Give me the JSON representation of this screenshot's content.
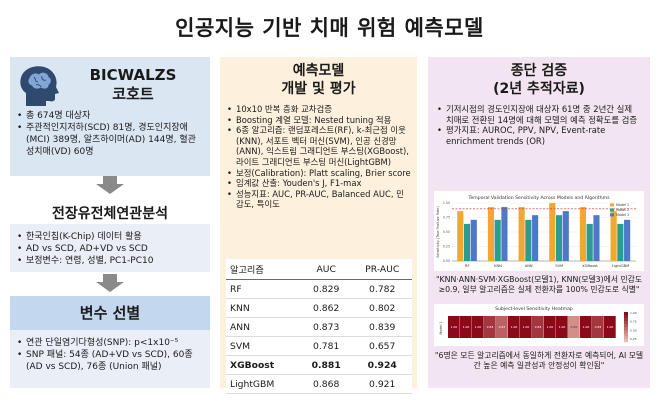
{
  "title": "인공지능 기반 치매 위험 예측모델",
  "cohort": {
    "name": "BICWALZS",
    "subtitle": "코호트",
    "bullets": [
      "총 674명 대상자",
      "주관적인지저하(SCD) 81명, 경도인지장애(MCI) 389명, 알츠하이머(AD) 144명, 혈관성치매(VD) 60명"
    ]
  },
  "genome": {
    "title": "전장유전체연관분석",
    "bullets": [
      "한국인칩(K-Chip) 데이터 활용",
      "AD vs SCD, AD+VD vs SCD",
      "보정변수: 연령, 성별, PC1-PC10"
    ]
  },
  "variables": {
    "title": "변수 선별",
    "bullets": [
      "연관 단일염기다형성(SNP): p<1x10⁻⁵",
      "SNP 패널: 54종 (AD+VD vs SCD), 60종 (AD vs SCD), 76종 (Union 패널)"
    ]
  },
  "model": {
    "title_line1": "예측모델",
    "title_line2": "개발 및 평가",
    "bullets": [
      "10x10 반복 층화 교차검증",
      "Boosting 계열 모델: Nested tuning 적용",
      "6종 알고리즘: 랜덤포레스트(RF), k-최근접 이웃(KNN), 서포트 벡터 머신(SVM), 인공 신경망(ANN), 익스트림 그래디언트 부스팅(XGBoost), 라이트 그래디언트 부스팅 머신(LightGBM)",
      "보정(Calibration): Platt scaling, Brier score",
      "임계값 산출: Youden's J, F1-max",
      "성능지표: AUC, PR-AUC, Balanced AUC, 민감도, 특이도"
    ],
    "table": {
      "headers": [
        "알고리즘",
        "AUC",
        "PR-AUC"
      ],
      "rows": [
        {
          "name": "RF",
          "auc": "0.829",
          "prauc": "0.782"
        },
        {
          "name": "KNN",
          "auc": "0.862",
          "prauc": "0.802"
        },
        {
          "name": "ANN",
          "auc": "0.873",
          "prauc": "0.839"
        },
        {
          "name": "SVM",
          "auc": "0.781",
          "prauc": "0.657"
        },
        {
          "name": "XGBoost",
          "auc": "0.881",
          "prauc": "0.924",
          "best": true
        },
        {
          "name": "LightGBM",
          "auc": "0.868",
          "prauc": "0.921"
        }
      ]
    }
  },
  "validation": {
    "title_line1": "종단 검증",
    "title_line2": "(2년 추적자료)",
    "bullets": [
      "기저시점의 경도인지장애 대상자 61명 중 2년간 실제 치매로 전환된 14명에 대해 모델의 예측 정확도를 검증",
      "평가지표: AUROC, PPV, NPV, Event-rate enrichment trends (OR)"
    ],
    "caption1": "\"KNN·ANN·SVM·XGBoost(모델1), KNN(모델3)에서 민감도 ≥0.9, 일부 알고리즘은 실제 전환자를 100% 민감도로 식별\"",
    "caption2": "\"6명은 모든 알고리즘에서 동일하게 전환자로 예측되어, AI 모델 간 높은 예측 일관성과 안정성이 확인됨\""
  },
  "chart_data": [
    {
      "type": "bar",
      "title": "Temporal Validation Sensitivity Across Models and Algorithms",
      "ylabel": "Sensitivity (True Positive Rate)",
      "categories": [
        "RF",
        "KNN",
        "ANN",
        "SVM",
        "XGBoost",
        "LightGBM"
      ],
      "ylim": [
        0,
        1
      ],
      "series": [
        {
          "name": "Model 1",
          "values": [
            0.86,
            0.93,
            0.93,
            1.0,
            0.93,
            0.86
          ],
          "color": "#f0a830"
        },
        {
          "name": "Model 2",
          "values": [
            0.64,
            0.71,
            0.71,
            0.79,
            0.64,
            0.64
          ],
          "color": "#2a9d8f"
        },
        {
          "name": "Model 3",
          "values": [
            0.71,
            0.93,
            0.79,
            0.86,
            0.79,
            0.71
          ],
          "color": "#4e79c7"
        }
      ],
      "reference_line": 0.9,
      "reference_color": "#d62728",
      "legend": "top-right"
    },
    {
      "type": "heatmap",
      "title": "Subject-level Sensitivity Heatmap",
      "ylabel": "Model 1",
      "colorbar_ticks": [
        "1.00",
        "0.75",
        "0.50",
        "0.25"
      ],
      "values": [
        1.0,
        1.0,
        1.0,
        0.83,
        0.67,
        1.0,
        1.0,
        0.83,
        1.0,
        1.0,
        0.5,
        1.0,
        0.83,
        1.0
      ],
      "low_color": "#f5d0c0",
      "high_color": "#8b0a1a"
    }
  ]
}
